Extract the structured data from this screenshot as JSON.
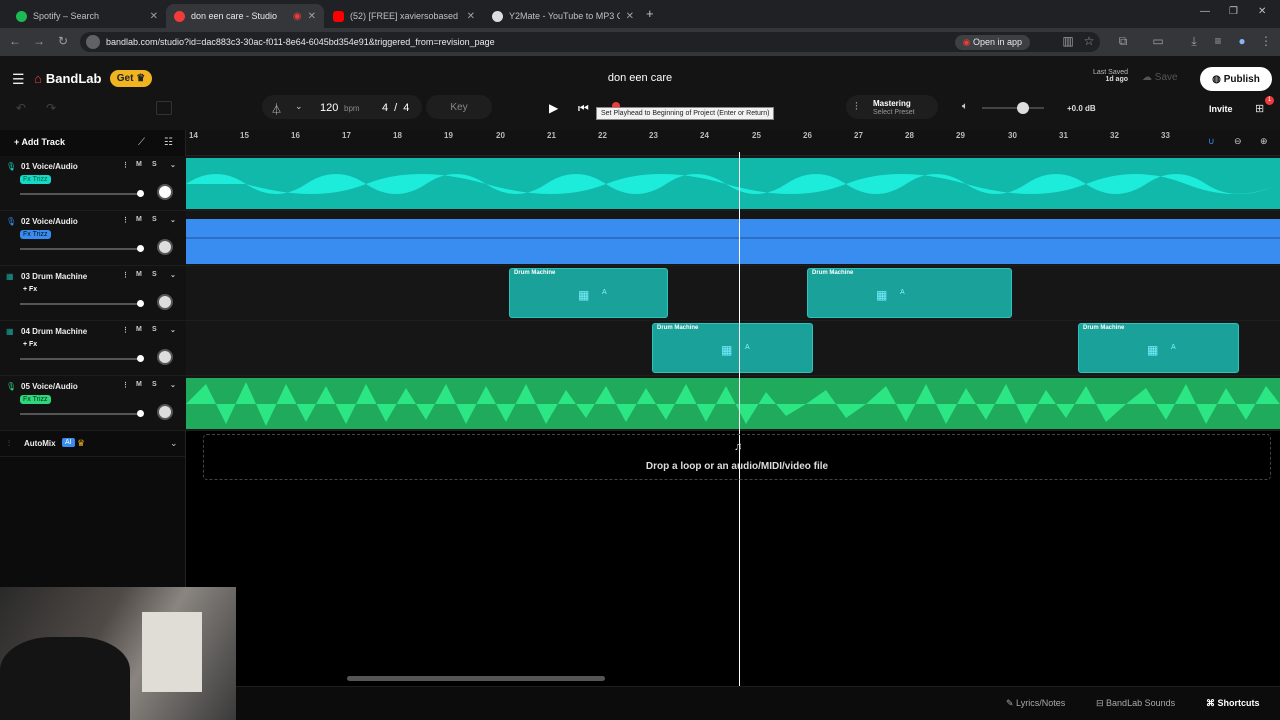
{
  "browser": {
    "tabs": [
      {
        "title": "Spotify – Search",
        "favicon_color": "#1db954",
        "active": false
      },
      {
        "title": "don een care - Studio",
        "favicon_color": "#f23a3a",
        "active": true
      },
      {
        "title": "(52) [FREE] xaviersobased -",
        "favicon_color": "#ff0000",
        "active": false
      },
      {
        "title": "Y2Mate - YouTube to MP3 Con",
        "favicon_color": "#dddddd",
        "active": false
      }
    ],
    "new_tab": "+",
    "url": "bandlab.com/studio?id=dac883c3-30ac-f011-8e64-6045bd354e91&triggered_from=revision_page",
    "open_in_app": "Open in app"
  },
  "app": {
    "logo": "BandLab",
    "get_label": "Get",
    "project_title": "don een care",
    "last_saved_label": "Last Saved",
    "last_saved_value": "1d ago",
    "save_label": "Save",
    "publish_label": "Publish",
    "invite_label": "Invite",
    "gift_badge": "1"
  },
  "transport": {
    "bpm_value": "120",
    "bpm_unit": "bpm",
    "time_sig_num": "4",
    "time_sig_sep": "/",
    "time_sig_den": "4",
    "key_label": "Key",
    "tooltip": "Set Playhead to Beginning of Project (Enter or Return)",
    "mastering_label": "Mastering",
    "mastering_preset": "Select Preset",
    "volume_db": "+0.0 dB"
  },
  "timeline": {
    "add_track": "Add Track",
    "ruler": [
      "14",
      "15",
      "16",
      "17",
      "18",
      "19",
      "20",
      "21",
      "22",
      "23",
      "24",
      "25",
      "26",
      "27",
      "28",
      "29",
      "30",
      "31",
      "32",
      "33"
    ],
    "tracks": [
      {
        "name": "01  Voice/Audio",
        "fx": "Fx Trizz",
        "color": "#14d8c8"
      },
      {
        "name": "02  Voice/Audio",
        "fx": "Fx Trizz",
        "color": "#3a8df0"
      },
      {
        "name": "03  Drum Machine",
        "fx": "+ Fx",
        "color": "#1aa19a"
      },
      {
        "name": "04  Drum Machine",
        "fx": "+ Fx",
        "color": "#1aa19a"
      },
      {
        "name": "05  Voice/Audio",
        "fx": "Fx Trizz",
        "color": "#2fd67a"
      }
    ],
    "mute": "M",
    "solo": "S",
    "clip_label": "Drum Machine",
    "clip_sub": "A",
    "automix": "AutoMix",
    "ai_badge": "AI",
    "drop_text": "Drop a loop or an audio/MIDI/video file"
  },
  "footer": {
    "lyrics": "Lyrics/Notes",
    "sounds": "BandLab Sounds",
    "shortcuts": "Shortcuts"
  }
}
